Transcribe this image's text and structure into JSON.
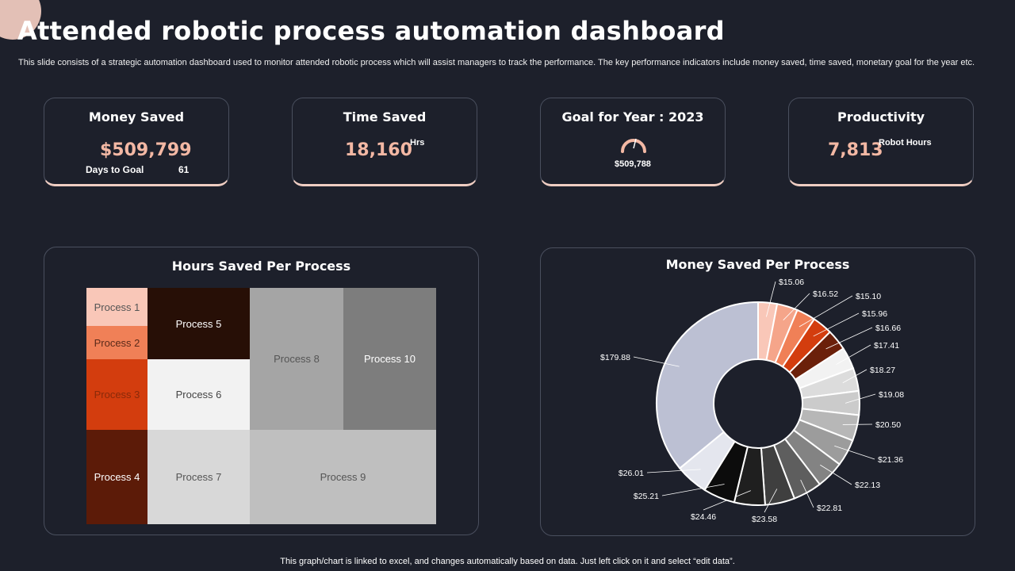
{
  "header": {
    "title": "Attended robotic process automation dashboard",
    "subtitle": "This slide consists of a strategic automation dashboard used to monitor attended robotic process which will assist managers to track the performance. The key performance indicators include money saved, time saved, monetary goal for the year etc."
  },
  "kpis": {
    "money_saved": {
      "title": "Money Saved",
      "value": "$509,799",
      "goal_label": "Days to Goal",
      "goal_value": "61"
    },
    "time_saved": {
      "title": "Time Saved",
      "value": "18,160",
      "unit": "Hrs"
    },
    "goal": {
      "title": "Goal for Year : 2023",
      "value": "$509,788"
    },
    "productivity": {
      "title": "Productivity",
      "value": "7,813",
      "unit": "Robot Hours"
    }
  },
  "colors": {
    "background": "#1d202b",
    "accent": "#f3b8a4",
    "border": "#4a4f5e"
  },
  "footer": {
    "note": "This graph/chart is linked to excel, and changes automatically based on data. Just left click on it and select “edit data”."
  },
  "chart_data": [
    {
      "type": "treemap",
      "title": "Hours Saved Per Process",
      "items": [
        {
          "label": "Process 1",
          "color": "#f9c7b8",
          "text_color": "#555555"
        },
        {
          "label": "Process 2",
          "color": "#f08057",
          "text_color": "#5a2a1a"
        },
        {
          "label": "Process 3",
          "color": "#d33d0e",
          "text_color": "#8a2a0a"
        },
        {
          "label": "Process 4",
          "color": "#5c1b08",
          "text_color": "#ffffff"
        },
        {
          "label": "Process 5",
          "color": "#270f06",
          "text_color": "#ffffff"
        },
        {
          "label": "Process 6",
          "color": "#f2f2f2",
          "text_color": "#444444"
        },
        {
          "label": "Process 7",
          "color": "#d8d8d8",
          "text_color": "#555555"
        },
        {
          "label": "Process 8",
          "color": "#a5a5a5",
          "text_color": "#555555"
        },
        {
          "label": "Process 9",
          "color": "#bfbfbf",
          "text_color": "#555555"
        },
        {
          "label": "Process 10",
          "color": "#7d7d7d",
          "text_color": "#ffffff"
        }
      ]
    },
    {
      "type": "donut",
      "title": "Money Saved Per Process",
      "values": [
        15.06,
        16.52,
        15.1,
        15.96,
        16.66,
        17.41,
        18.27,
        19.08,
        20.5,
        21.36,
        22.13,
        22.81,
        23.58,
        24.46,
        25.21,
        26.01,
        179.88
      ],
      "labels": [
        "$15.06",
        "$16.52",
        "$15.10",
        "$15.96",
        "$16.66",
        "$17.41",
        "$18.27",
        "$19.08",
        "$20.50",
        "$21.36",
        "$22.13",
        "$22.81",
        "$23.58",
        "$24.46",
        "$25.21",
        "$26.01",
        "$179.88"
      ],
      "colors": [
        "#f9c7b8",
        "#f5a58a",
        "#f08057",
        "#d33d0e",
        "#6b200a",
        "#f2f2f2",
        "#dcdcdc",
        "#cbcbcb",
        "#b7b7b7",
        "#9c9c9c",
        "#838383",
        "#5e5e5e",
        "#3f3f3f",
        "#1f1f1f",
        "#0c0c0c",
        "#e4e6ee",
        "#bcc0d3"
      ]
    }
  ]
}
